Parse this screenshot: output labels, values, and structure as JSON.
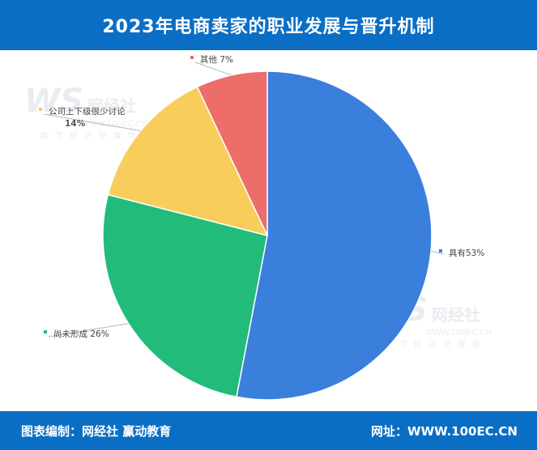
{
  "title": "2023年电商卖家的职业发展与晋升机制",
  "footer": {
    "credit": "图表编制：网经社 赢动教育",
    "site": "网址：WWW.100EC.CN"
  },
  "watermark": {
    "logo": "WS",
    "name": "网经社",
    "domain": "WWW.100EC.CN",
    "tagline": "数字经济新媒体"
  },
  "chart_data": {
    "type": "pie",
    "title": "",
    "categories": [
      "具有",
      "尚未形成",
      "公司上下级很少讨论",
      "其他"
    ],
    "values": [
      53,
      26,
      14,
      7
    ],
    "unit": "%",
    "colors": [
      "#3b7fdc",
      "#22bb7a",
      "#f8cd5b",
      "#ec6d6a"
    ],
    "labels": [
      "具有53%",
      "尚未形成 26%",
      "公司上下级很少讨论",
      "其他 7%"
    ],
    "sub_labels": [
      "",
      "",
      "14%",
      ""
    ]
  }
}
